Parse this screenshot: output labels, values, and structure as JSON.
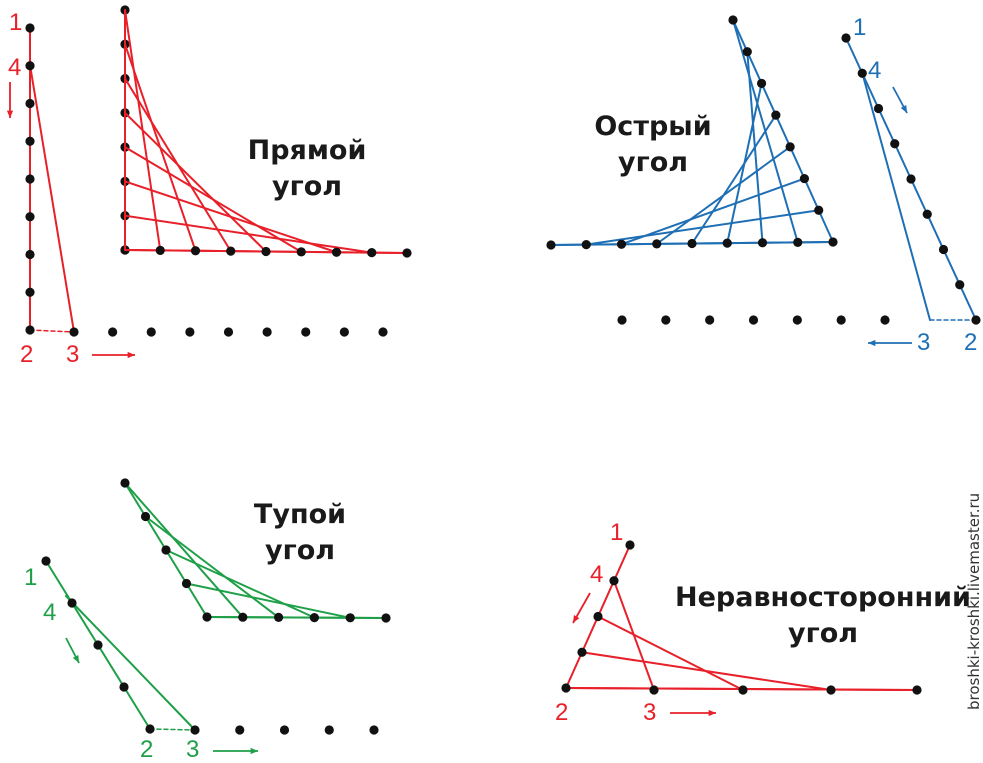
{
  "colors": {
    "right": "#e8202a",
    "acute": "#1f6fb5",
    "obtuse": "#1fa048",
    "scalene": "#e8202a",
    "dot": "#111111"
  },
  "diagrams": {
    "right": {
      "title_line1": "Прямой",
      "title_line2": "угол",
      "num1": "1",
      "num2": "2",
      "num3": "3",
      "num4": "4"
    },
    "acute": {
      "title_line1": "Острый",
      "title_line2": "угол",
      "num1": "1",
      "num2": "2",
      "num3": "3",
      "num4": "4"
    },
    "obtuse": {
      "title_line1": "Тупой",
      "title_line2": "угол",
      "num1": "1",
      "num2": "2",
      "num3": "3",
      "num4": "4"
    },
    "scalene": {
      "title_line1": "Неравносторонний",
      "title_line2": "угол",
      "num1": "1",
      "num2": "2",
      "num3": "3",
      "num4": "4"
    }
  },
  "watermark": "broshki-kroshki.livemaster.ru"
}
